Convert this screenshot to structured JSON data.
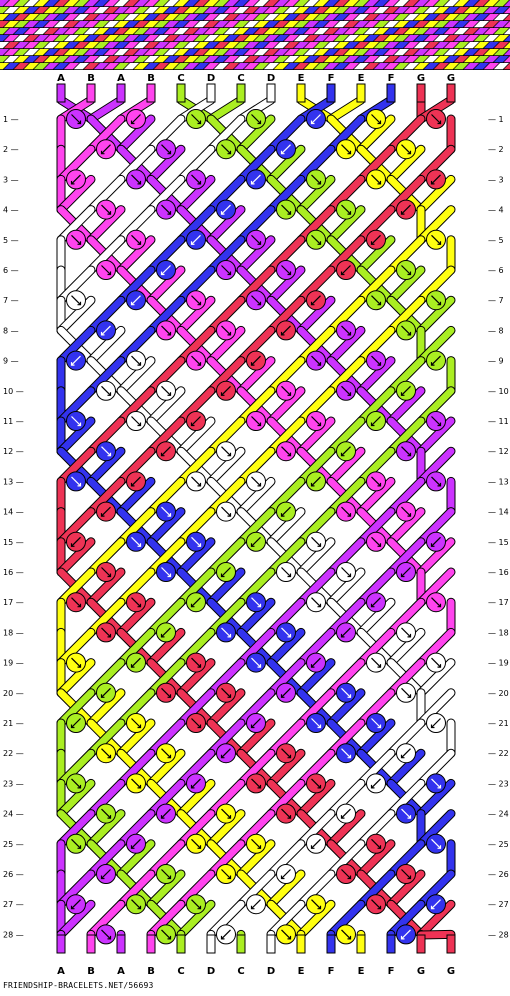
{
  "pattern": {
    "top_labels": [
      "A",
      "B",
      "A",
      "B",
      "C",
      "D",
      "C",
      "D",
      "E",
      "F",
      "E",
      "F",
      "G",
      "G"
    ],
    "bottom_labels": [
      "A",
      "B",
      "A",
      "B",
      "C",
      "D",
      "C",
      "D",
      "E",
      "F",
      "E",
      "F",
      "G",
      "G"
    ],
    "row_numbers": [
      "1",
      "2",
      "3",
      "4",
      "5",
      "6",
      "7",
      "8",
      "9",
      "10",
      "11",
      "12",
      "13",
      "14",
      "15",
      "16",
      "17",
      "18",
      "19",
      "20",
      "21",
      "22",
      "23",
      "24",
      "25",
      "26",
      "27",
      "28"
    ]
  },
  "colors": {
    "A": "#cc33ff",
    "B": "#ff44ee",
    "C": "#aaee22",
    "D": "#ffffff",
    "E": "#ffff11",
    "F": "#3333ee",
    "G": "#ee3355"
  },
  "icons": {
    "knot_arrows": [
      "arrow-down-right-icon",
      "arrow-down-left-icon"
    ]
  },
  "footer": {
    "site": "FRIENDSHIP-BRACELETS.NET/56693"
  }
}
